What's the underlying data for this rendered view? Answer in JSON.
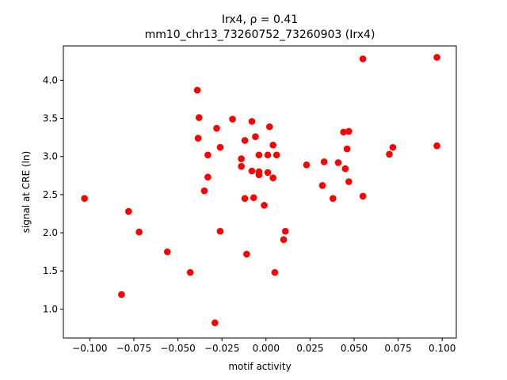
{
  "chart_data": {
    "type": "scatter",
    "title_line1": "Irx4, ρ = 0.41",
    "title_line2": "mm10_chr13_73260752_73260903 (Irx4)",
    "xlabel": "motif activity",
    "ylabel": "signal at CRE (ln)",
    "xlim": [
      -0.115,
      0.108
    ],
    "ylim": [
      0.62,
      4.45
    ],
    "x_ticks": [
      -0.1,
      -0.075,
      -0.05,
      -0.025,
      0.0,
      0.025,
      0.05,
      0.075,
      0.1
    ],
    "x_tick_labels": [
      "−0.100",
      "−0.075",
      "−0.050",
      "−0.025",
      "0.000",
      "0.025",
      "0.050",
      "0.075",
      "0.100"
    ],
    "y_ticks": [
      1.0,
      1.5,
      2.0,
      2.5,
      3.0,
      3.5,
      4.0
    ],
    "y_tick_labels": [
      "1.0",
      "1.5",
      "2.0",
      "2.5",
      "3.0",
      "3.5",
      "4.0"
    ],
    "grid": false,
    "legend": "none",
    "marker_color": "#ff0000",
    "points": [
      {
        "x": -0.103,
        "y": 2.45
      },
      {
        "x": -0.082,
        "y": 1.19
      },
      {
        "x": -0.078,
        "y": 2.28
      },
      {
        "x": -0.072,
        "y": 2.01
      },
      {
        "x": -0.056,
        "y": 1.75
      },
      {
        "x": -0.043,
        "y": 1.48
      },
      {
        "x": -0.039,
        "y": 3.87
      },
      {
        "x": -0.0385,
        "y": 3.24
      },
      {
        "x": -0.038,
        "y": 3.51
      },
      {
        "x": -0.035,
        "y": 2.55
      },
      {
        "x": -0.033,
        "y": 3.02
      },
      {
        "x": -0.033,
        "y": 2.73
      },
      {
        "x": -0.029,
        "y": 0.82
      },
      {
        "x": -0.028,
        "y": 3.37
      },
      {
        "x": -0.026,
        "y": 3.12
      },
      {
        "x": -0.026,
        "y": 2.02
      },
      {
        "x": -0.019,
        "y": 3.49
      },
      {
        "x": -0.014,
        "y": 2.97
      },
      {
        "x": -0.014,
        "y": 2.87
      },
      {
        "x": -0.012,
        "y": 3.21
      },
      {
        "x": -0.012,
        "y": 2.45
      },
      {
        "x": -0.011,
        "y": 1.72
      },
      {
        "x": -0.008,
        "y": 3.46
      },
      {
        "x": -0.008,
        "y": 2.81
      },
      {
        "x": -0.007,
        "y": 2.46
      },
      {
        "x": -0.006,
        "y": 3.26
      },
      {
        "x": -0.004,
        "y": 3.02
      },
      {
        "x": -0.004,
        "y": 2.8
      },
      {
        "x": -0.004,
        "y": 2.76
      },
      {
        "x": -0.001,
        "y": 2.36
      },
      {
        "x": 0.001,
        "y": 2.79
      },
      {
        "x": 0.001,
        "y": 3.02
      },
      {
        "x": 0.002,
        "y": 3.39
      },
      {
        "x": 0.004,
        "y": 3.15
      },
      {
        "x": 0.004,
        "y": 2.72
      },
      {
        "x": 0.005,
        "y": 1.48
      },
      {
        "x": 0.006,
        "y": 3.02
      },
      {
        "x": 0.01,
        "y": 1.91
      },
      {
        "x": 0.011,
        "y": 2.02
      },
      {
        "x": 0.023,
        "y": 2.89
      },
      {
        "x": 0.032,
        "y": 2.62
      },
      {
        "x": 0.033,
        "y": 2.93
      },
      {
        "x": 0.038,
        "y": 2.45
      },
      {
        "x": 0.041,
        "y": 2.92
      },
      {
        "x": 0.044,
        "y": 3.32
      },
      {
        "x": 0.045,
        "y": 2.84
      },
      {
        "x": 0.046,
        "y": 3.1
      },
      {
        "x": 0.047,
        "y": 3.33
      },
      {
        "x": 0.047,
        "y": 2.67
      },
      {
        "x": 0.055,
        "y": 4.28
      },
      {
        "x": 0.055,
        "y": 2.48
      },
      {
        "x": 0.07,
        "y": 3.03
      },
      {
        "x": 0.072,
        "y": 3.12
      },
      {
        "x": 0.097,
        "y": 4.3
      },
      {
        "x": 0.097,
        "y": 3.14
      }
    ]
  }
}
